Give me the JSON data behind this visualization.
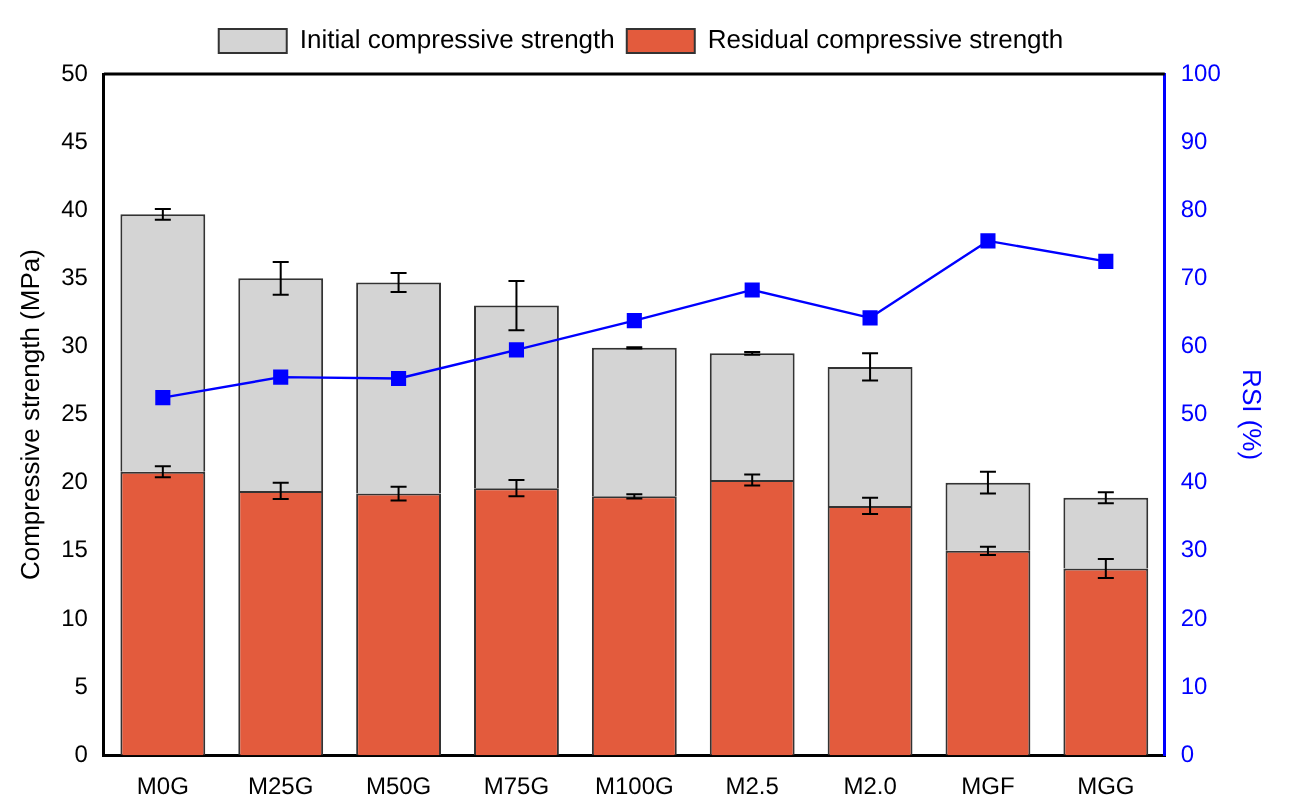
{
  "chart_data": {
    "type": "bar",
    "stacked": true,
    "xlabel": null,
    "categories": [
      "M0G",
      "M25G",
      "M50G",
      "M75G",
      "M100G",
      "M2.5",
      "M2.0",
      "MGF",
      "MGG"
    ],
    "series": [
      {
        "name": "Residual compressive strength",
        "color": "#e35b3d",
        "values": [
          20.8,
          19.4,
          19.2,
          19.6,
          19.0,
          20.2,
          18.3,
          15.0,
          13.7
        ],
        "errors": [
          0.4,
          0.6,
          0.5,
          0.6,
          0.15,
          0.4,
          0.6,
          0.3,
          0.7
        ]
      },
      {
        "name": "Initial compressive strength",
        "color": "#d4d4d4",
        "values": [
          18.9,
          15.6,
          15.5,
          13.4,
          10.9,
          9.3,
          10.2,
          5.0,
          5.2
        ],
        "errors": [
          0.4,
          1.2,
          0.7,
          1.8,
          0.05,
          0.1,
          1.0,
          0.8,
          0.4
        ]
      },
      {
        "type": "line",
        "axis": "y2",
        "color": "#0000ff",
        "marker": "square",
        "values": [
          52.5,
          55.5,
          55.3,
          59.5,
          63.8,
          68.3,
          64.2,
          75.5,
          72.5
        ]
      }
    ],
    "ylabel": "Compressive strength (MPa)",
    "y2label": "RSI (%)",
    "ylim": [
      0,
      50
    ],
    "yticks": [
      0,
      5,
      10,
      15,
      20,
      25,
      30,
      35,
      40,
      45,
      50
    ],
    "y2lim": [
      0,
      100
    ],
    "y2ticks": [
      0,
      10,
      20,
      30,
      40,
      50,
      60,
      70,
      80,
      90,
      100
    ],
    "legend": "top",
    "grid": false
  }
}
